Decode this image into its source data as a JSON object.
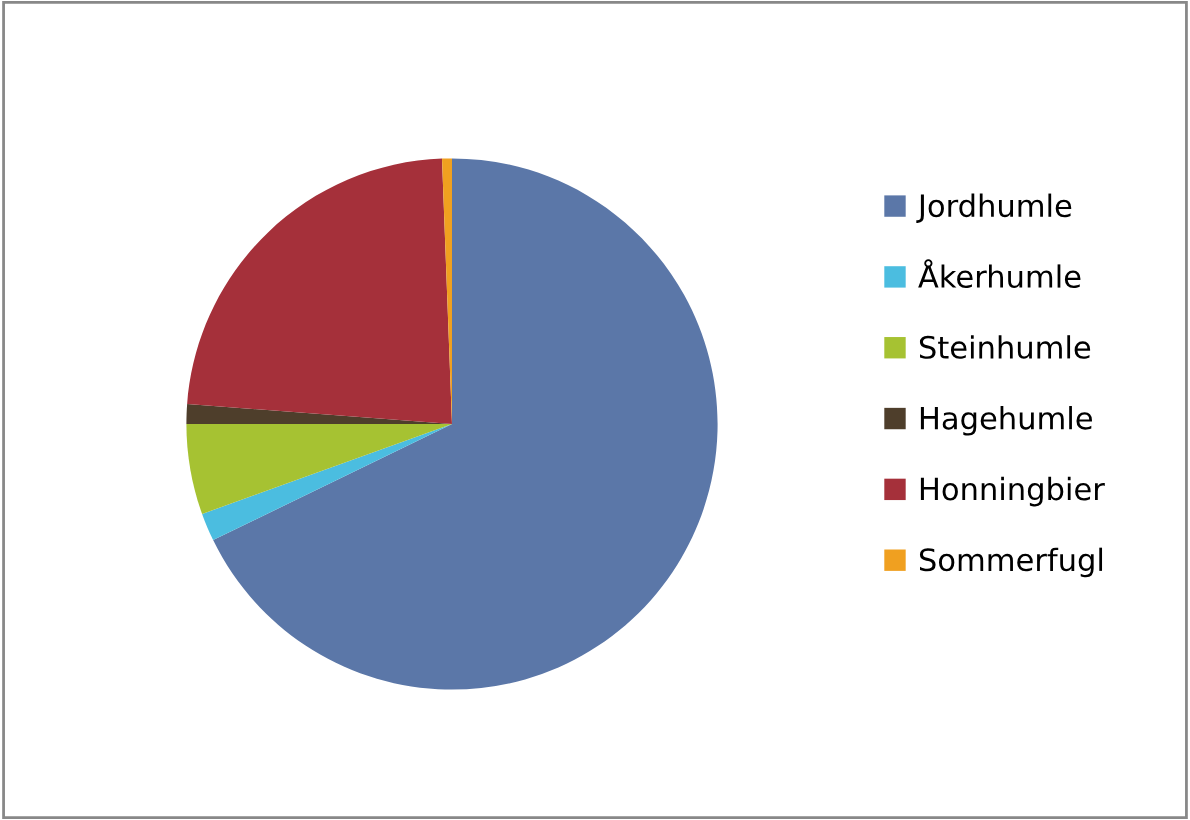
{
  "chart_data": {
    "type": "pie",
    "categories": [
      "Jordhumle",
      "Åkerhumle",
      "Steinhumle",
      "Hagehumle",
      "Honningbier",
      "Sommerfugl"
    ],
    "values": [
      67.8,
      1.7,
      5.5,
      1.2,
      23.2,
      0.6
    ],
    "colors": [
      "#5b77a8",
      "#4bbde0",
      "#a6c232",
      "#4e3e2b",
      "#a5303a",
      "#f0a020"
    ],
    "legend": "right"
  }
}
